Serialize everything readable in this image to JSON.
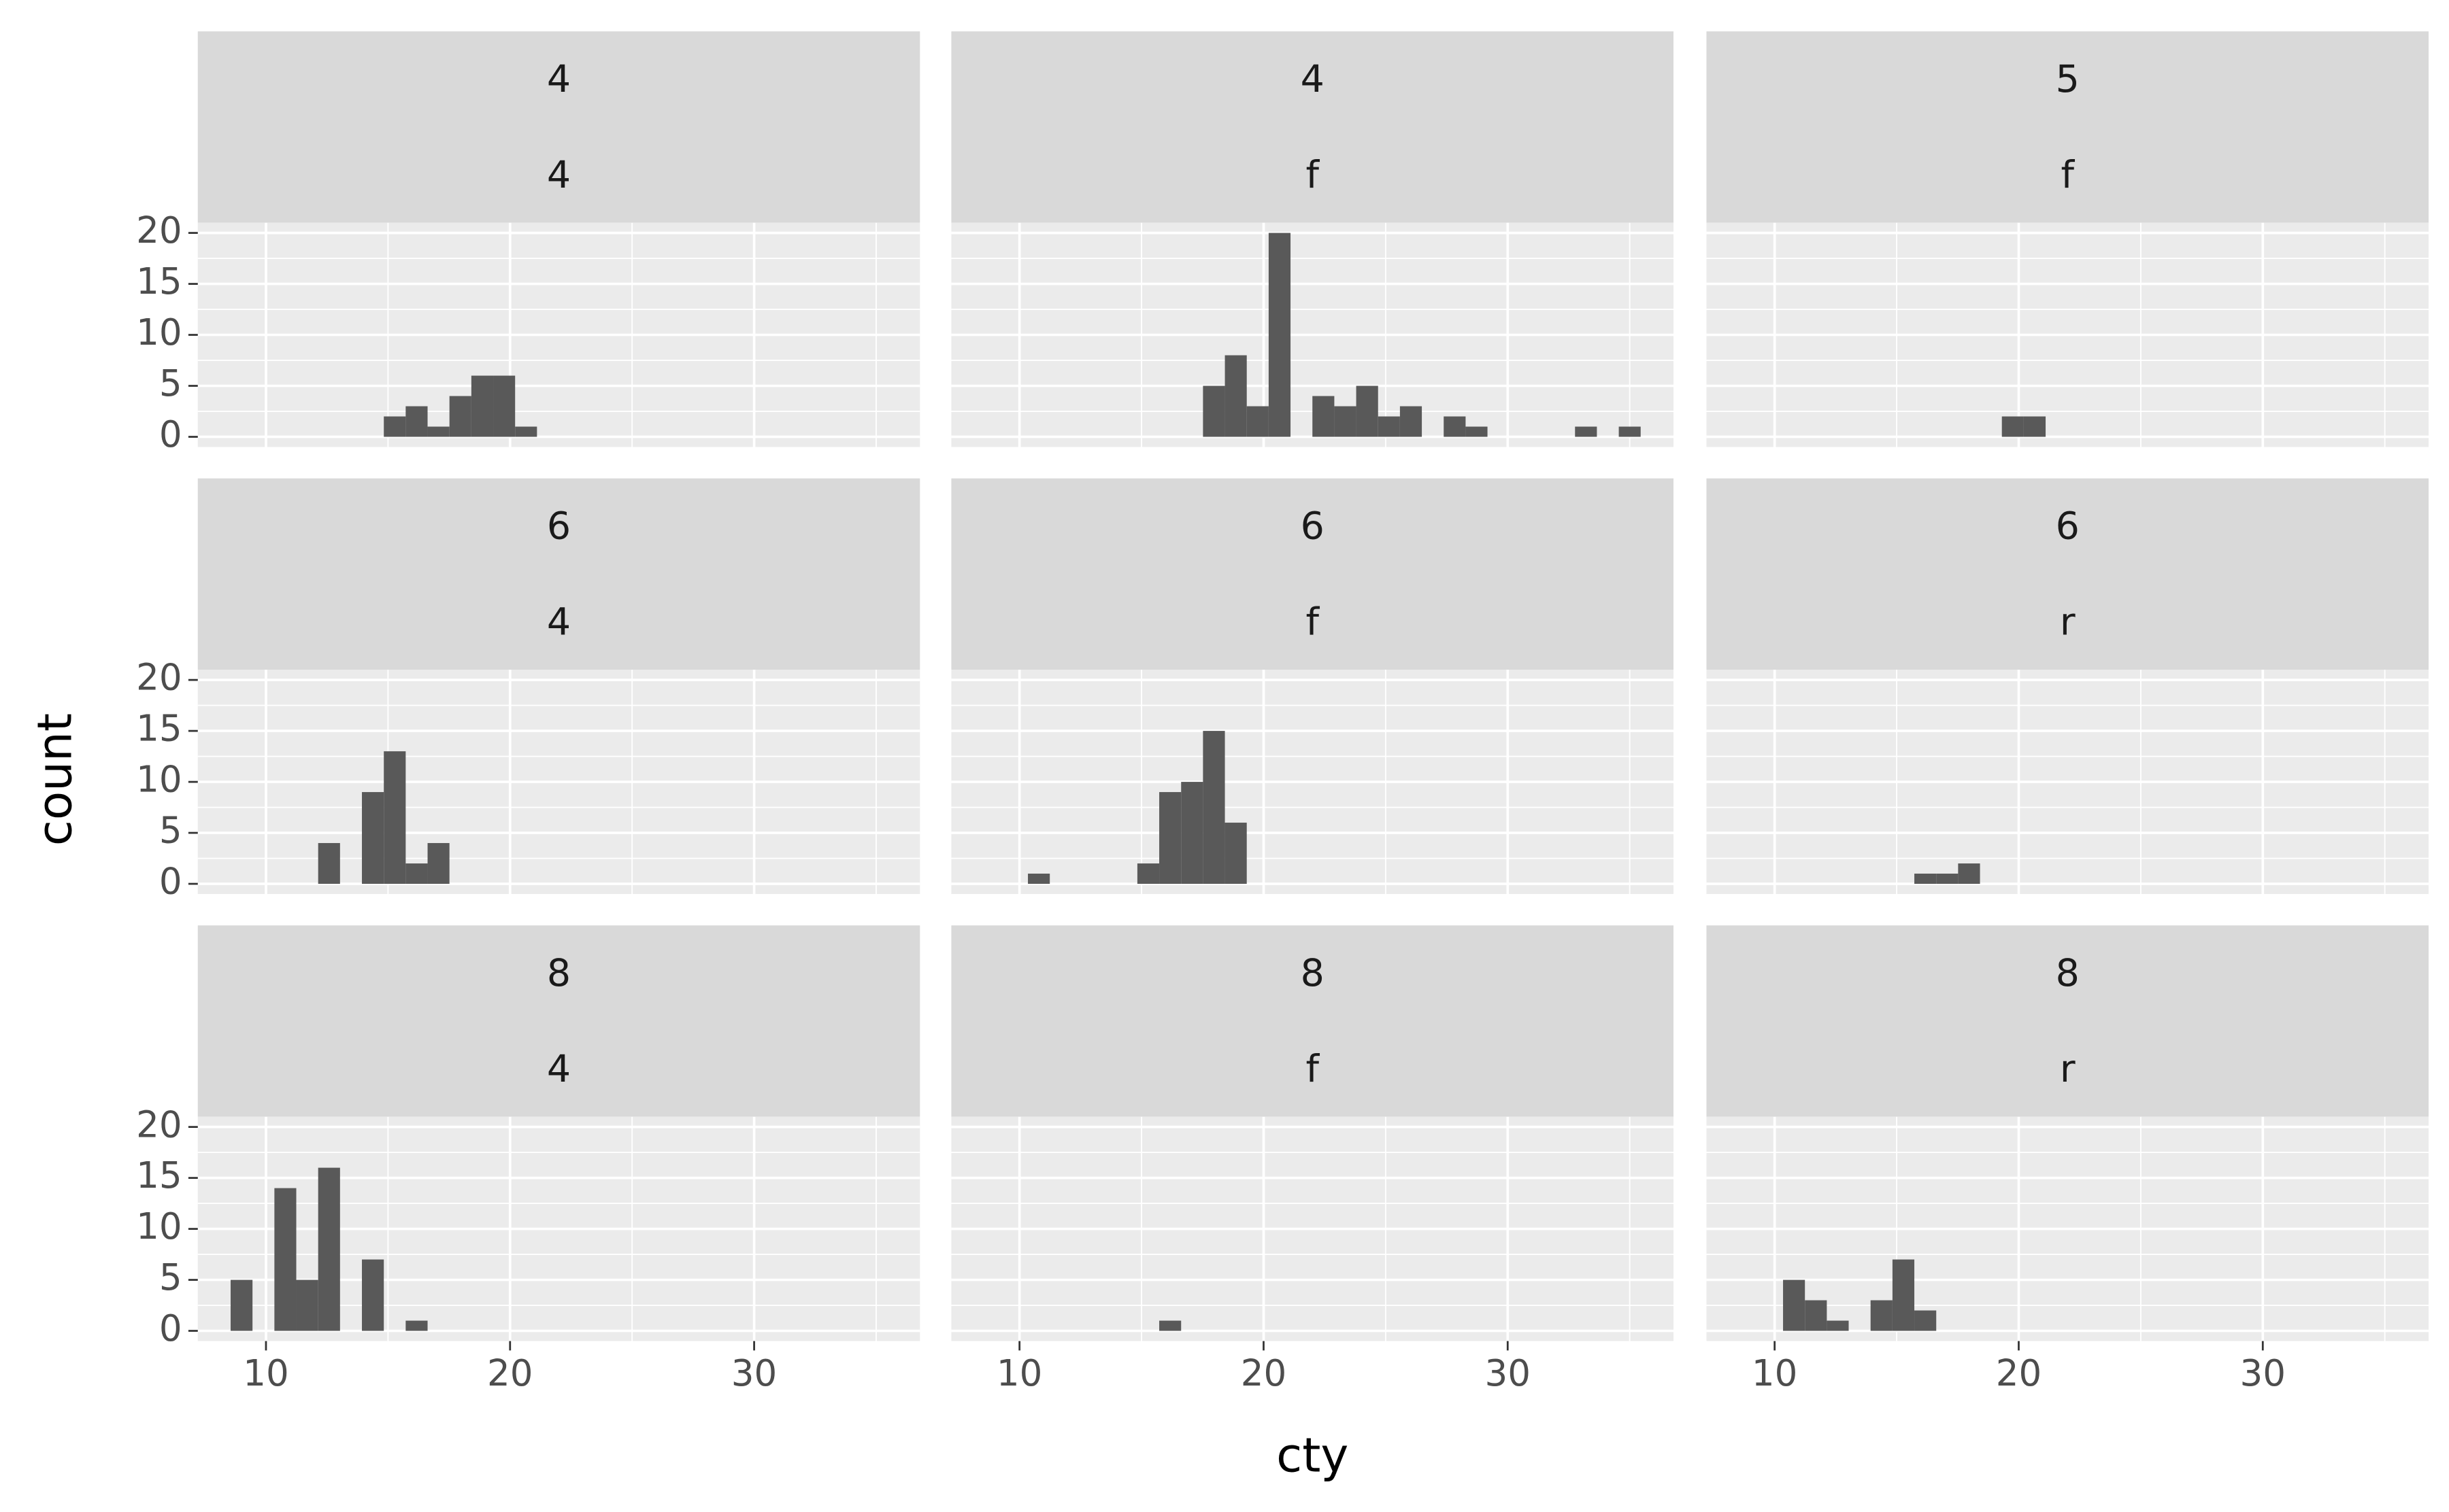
{
  "chart_data": {
    "type": "histogram",
    "xlabel": "cty",
    "ylabel": "count",
    "color": "#595959",
    "bins": [
      8.552,
      9.448,
      10.345,
      11.241,
      12.138,
      13.034,
      13.931,
      14.828,
      15.724,
      16.621,
      17.517,
      18.414,
      19.31,
      20.207,
      21.103,
      22.0,
      22.897,
      23.793,
      24.69,
      25.586,
      26.483,
      27.379,
      28.276,
      29.172,
      30.069,
      30.966,
      31.862,
      32.759,
      33.655,
      34.552,
      35.448
    ],
    "xlim": [
      7.207,
      36.793
    ],
    "ylim": [
      -1,
      21
    ],
    "xticks": [
      10,
      20,
      30
    ],
    "yticks": [
      0,
      5,
      10,
      15,
      20
    ],
    "xminor": [
      15,
      25,
      35
    ],
    "yminor": [
      2.5,
      7.5,
      12.5,
      17.5
    ],
    "grid": true,
    "panels": [
      {
        "strip": [
          "4",
          "4"
        ],
        "values": [
          0,
          0,
          0,
          0,
          0,
          0,
          0,
          2,
          3,
          1,
          4,
          6,
          6,
          1,
          0,
          0,
          0,
          0,
          0,
          0,
          0,
          0,
          0,
          0,
          0,
          0,
          0,
          0,
          0,
          0
        ]
      },
      {
        "strip": [
          "4",
          "f"
        ],
        "values": [
          0,
          0,
          0,
          0,
          0,
          0,
          0,
          0,
          0,
          0,
          5,
          8,
          3,
          20,
          0,
          4,
          3,
          5,
          2,
          3,
          0,
          2,
          1,
          0,
          0,
          0,
          0,
          1,
          0,
          1
        ]
      },
      {
        "strip": [
          "5",
          "f"
        ],
        "values": [
          0,
          0,
          0,
          0,
          0,
          0,
          0,
          0,
          0,
          0,
          0,
          0,
          2,
          2,
          0,
          0,
          0,
          0,
          0,
          0,
          0,
          0,
          0,
          0,
          0,
          0,
          0,
          0,
          0,
          0
        ]
      },
      {
        "strip": [
          "6",
          "4"
        ],
        "values": [
          0,
          0,
          0,
          0,
          4,
          0,
          9,
          13,
          2,
          4,
          0,
          0,
          0,
          0,
          0,
          0,
          0,
          0,
          0,
          0,
          0,
          0,
          0,
          0,
          0,
          0,
          0,
          0,
          0,
          0
        ]
      },
      {
        "strip": [
          "6",
          "f"
        ],
        "values": [
          0,
          0,
          1,
          0,
          0,
          0,
          0,
          2,
          9,
          10,
          15,
          6,
          0,
          0,
          0,
          0,
          0,
          0,
          0,
          0,
          0,
          0,
          0,
          0,
          0,
          0,
          0,
          0,
          0,
          0
        ]
      },
      {
        "strip": [
          "6",
          "r"
        ],
        "values": [
          0,
          0,
          0,
          0,
          0,
          0,
          0,
          0,
          1,
          1,
          2,
          0,
          0,
          0,
          0,
          0,
          0,
          0,
          0,
          0,
          0,
          0,
          0,
          0,
          0,
          0,
          0,
          0,
          0,
          0
        ]
      },
      {
        "strip": [
          "8",
          "4"
        ],
        "values": [
          5,
          0,
          14,
          5,
          16,
          0,
          7,
          0,
          1,
          0,
          0,
          0,
          0,
          0,
          0,
          0,
          0,
          0,
          0,
          0,
          0,
          0,
          0,
          0,
          0,
          0,
          0,
          0,
          0,
          0
        ]
      },
      {
        "strip": [
          "8",
          "f"
        ],
        "values": [
          0,
          0,
          0,
          0,
          0,
          0,
          0,
          0,
          1,
          0,
          0,
          0,
          0,
          0,
          0,
          0,
          0,
          0,
          0,
          0,
          0,
          0,
          0,
          0,
          0,
          0,
          0,
          0,
          0,
          0
        ]
      },
      {
        "strip": [
          "8",
          "r"
        ],
        "values": [
          0,
          0,
          5,
          3,
          1,
          0,
          3,
          7,
          2,
          0,
          0,
          0,
          0,
          0,
          0,
          0,
          0,
          0,
          0,
          0,
          0,
          0,
          0,
          0,
          0,
          0,
          0,
          0,
          0,
          0
        ]
      }
    ]
  }
}
